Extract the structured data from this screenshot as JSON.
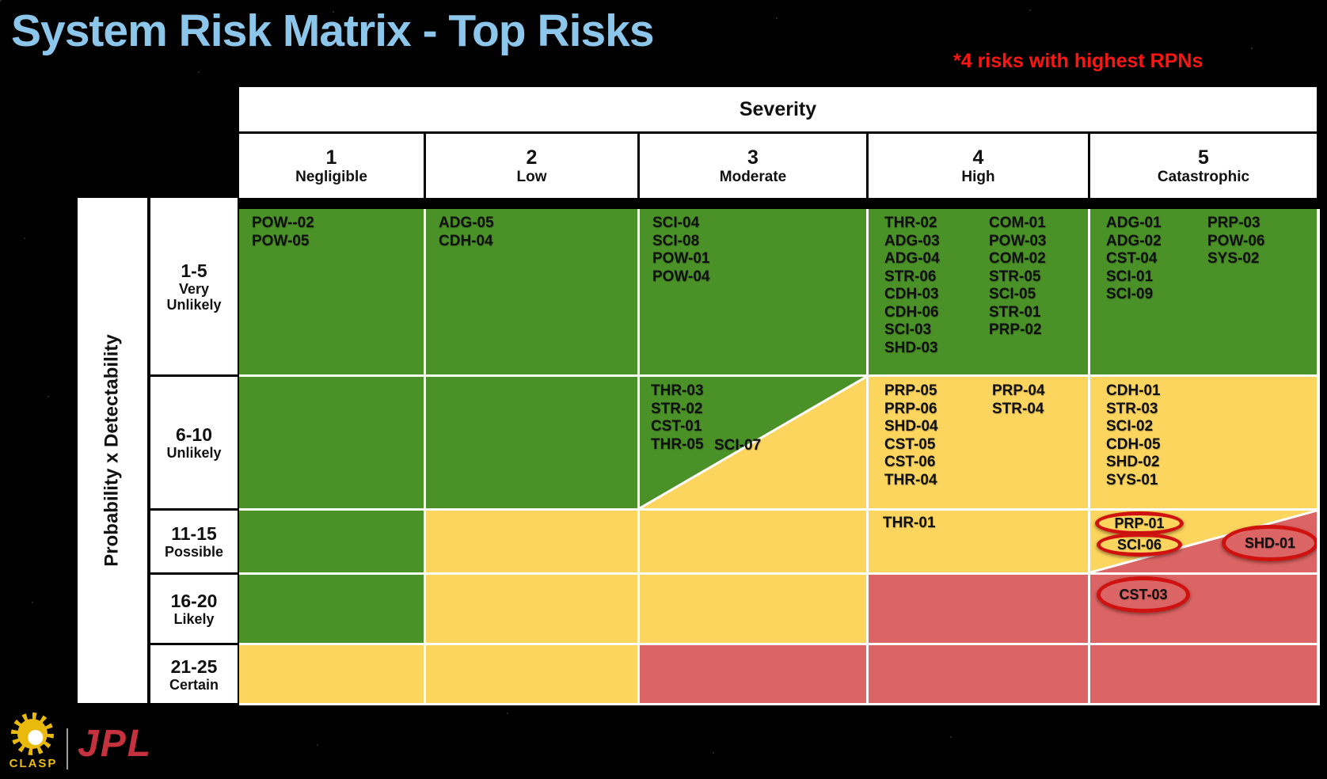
{
  "title": "System Risk Matrix - Top Risks",
  "note": "*4 risks with highest RPNs",
  "colors": {
    "cell_green": "#4a9127",
    "cell_yellow": "#fcd55e",
    "cell_red": "#db6464",
    "circle_red": "#cf1210",
    "title_blue": "#8cc6ea",
    "note_red": "#fe1512",
    "jpl_red": "#c5323d",
    "clasp_gold": "#edbd13"
  },
  "matrix": {
    "severity_label": "Severity",
    "prob_label": "Probability x Detectability",
    "columns": [
      {
        "num": "1",
        "label": "Negligible"
      },
      {
        "num": "2",
        "label": "Low"
      },
      {
        "num": "3",
        "label": "Moderate"
      },
      {
        "num": "4",
        "label": "High"
      },
      {
        "num": "5",
        "label": "Catastrophic"
      }
    ],
    "rows": [
      {
        "range": "1-5",
        "label": "Very Unlikely"
      },
      {
        "range": "6-10",
        "label": "Unlikely"
      },
      {
        "range": "11-15",
        "label": "Possible"
      },
      {
        "range": "16-20",
        "label": "Likely"
      },
      {
        "range": "21-25",
        "label": "Certain"
      }
    ],
    "cells": {
      "r1c1": [
        "POW--02",
        "POW-05"
      ],
      "r1c2": [
        "ADG-05",
        "CDH-04"
      ],
      "r1c3": [
        "SCI-04",
        "SCI-08",
        "POW-01",
        "POW-04"
      ],
      "r1c4a": [
        "THR-02",
        "ADG-03",
        "ADG-04",
        "STR-06",
        "CDH-03",
        "CDH-06",
        "SCI-03",
        "SHD-03"
      ],
      "r1c4b": [
        "COM-01",
        "POW-03",
        "COM-02",
        "STR-05",
        "SCI-05",
        "STR-01",
        "PRP-02"
      ],
      "r1c5a": [
        "ADG-01",
        "ADG-02",
        "CST-04",
        "SCI-01",
        "SCI-09"
      ],
      "r1c5b": [
        "PRP-03",
        "POW-06",
        "SYS-02"
      ],
      "r2c3_green": [
        "THR-03",
        "STR-02",
        "CST-01",
        "THR-05"
      ],
      "r2c3_yellow": "SCI-07",
      "r2c4a": [
        "PRP-05",
        "PRP-06",
        "SHD-04",
        "CST-05",
        "CST-06",
        "THR-04"
      ],
      "r2c4b": [
        "PRP-04",
        "STR-04"
      ],
      "r2c5": [
        "CDH-01",
        "STR-03",
        "SCI-02",
        "CDH-05",
        "SHD-02",
        "SYS-01"
      ],
      "r3c4": "THR-01",
      "circled": {
        "prp": "PRP-01",
        "sci": "SCI-06",
        "shd": "SHD-01",
        "cst": "CST-03"
      }
    }
  },
  "footer": {
    "clasp_label": "CLASP",
    "jpl_label": "JPL"
  }
}
